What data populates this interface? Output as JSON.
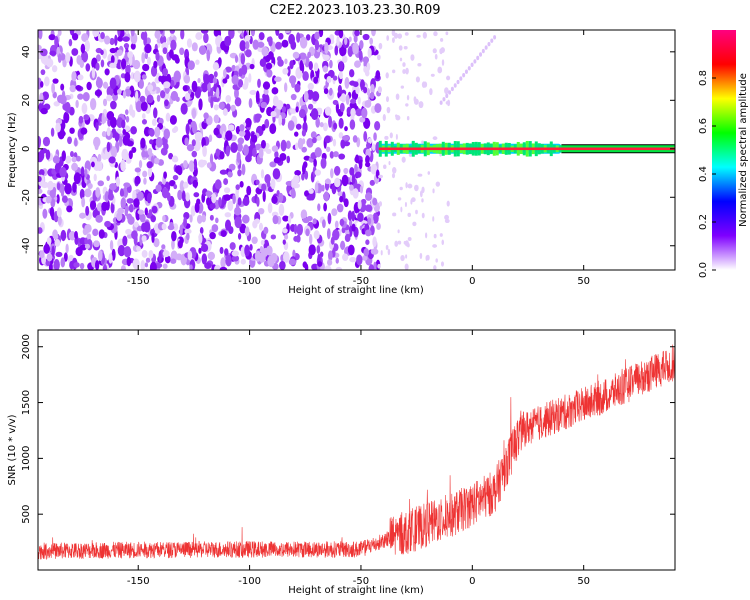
{
  "title": "C2E2.2023.103.23.30.R09",
  "chart_data": [
    {
      "type": "heatmap",
      "xlabel": "Height of straight line (km)",
      "ylabel": "Frequency (Hz)",
      "xlim": [
        -195,
        91
      ],
      "ylim": [
        -50,
        49
      ],
      "xticks": [
        -150,
        -100,
        -50,
        0,
        50
      ],
      "yticks": [
        -40,
        -20,
        0,
        20,
        40
      ],
      "noise_region_x": [
        -195,
        -42
      ],
      "signal_line": {
        "x": [
          -42,
          91
        ],
        "y": 0,
        "variable_segment_x": [
          -40,
          40
        ]
      },
      "spurious_trace": {
        "x": [
          -14,
          10
        ],
        "y": [
          19,
          46
        ]
      },
      "colorbar": {
        "label": "Normalized spectral amplitude",
        "range": [
          0,
          1
        ],
        "ticks": [
          0.0,
          0.2,
          0.4,
          0.6,
          0.8
        ],
        "colors": [
          "#ffffff",
          "#7f00ff",
          "#0000ff",
          "#00ffff",
          "#00ff00",
          "#ffff00",
          "#ff0000",
          "#ff007f"
        ]
      }
    },
    {
      "type": "line",
      "xlabel": "Height of straight line (km)",
      "ylabel": "SNR (10 * v/v)",
      "xlim": [
        -195,
        91
      ],
      "ylim": [
        0,
        2150
      ],
      "xticks": [
        -150,
        -100,
        -50,
        0,
        50
      ],
      "yticks": [
        500,
        1000,
        1500,
        2000
      ],
      "color": "#ee3333",
      "trend": {
        "x": [
          -195,
          -150,
          -100,
          -50,
          -35,
          -10,
          10,
          22,
          40,
          60,
          80,
          91
        ],
        "y": [
          170,
          180,
          185,
          185,
          300,
          480,
          700,
          1250,
          1400,
          1560,
          1760,
          1850
        ]
      }
    }
  ]
}
